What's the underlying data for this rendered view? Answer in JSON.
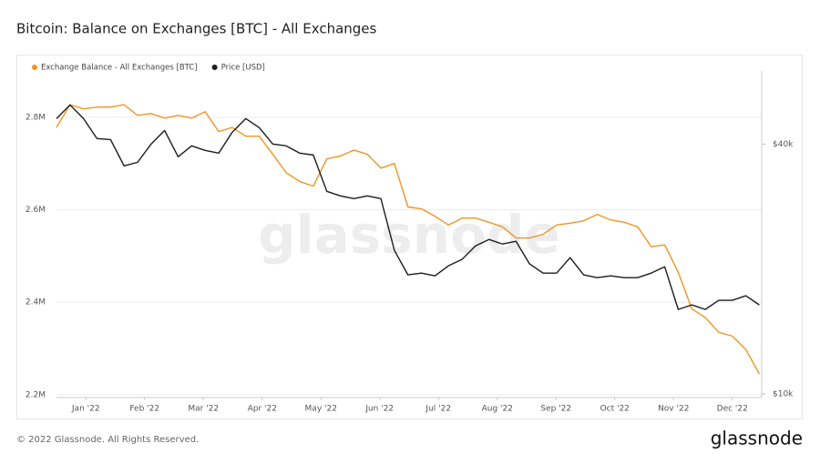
{
  "chart_data": {
    "type": "line",
    "title": "Bitcoin: Balance on Exchanges [BTC] - All Exchanges",
    "watermark": "glassnode",
    "footer": "© 2022 Glassnode. All Rights Reserved.",
    "brand": "glassnode",
    "x": [
      0,
      0.23,
      0.46,
      0.69,
      0.92,
      1.15,
      1.38,
      1.61,
      1.84,
      2.07,
      2.3,
      2.53,
      2.76,
      2.99,
      3.22,
      3.45,
      3.68,
      3.91,
      4.14,
      4.37,
      4.6,
      4.83,
      5.06,
      5.29,
      5.52,
      5.75,
      5.98,
      6.21,
      6.44,
      6.67,
      6.9,
      7.13,
      7.36,
      7.59,
      7.82,
      8.05,
      8.28,
      8.51,
      8.74,
      8.97,
      9.2,
      9.43,
      9.66,
      9.89,
      10.12,
      10.35,
      10.58,
      10.81,
      11.04,
      11.27,
      11.5,
      11.73,
      11.96
    ],
    "xlim": [
      0,
      12
    ],
    "xticks": [
      {
        "value": 0.5,
        "label": "Jan '22"
      },
      {
        "value": 1.5,
        "label": "Feb '22"
      },
      {
        "value": 2.5,
        "label": "Mar '22"
      },
      {
        "value": 3.5,
        "label": "Apr '22"
      },
      {
        "value": 4.5,
        "label": "May '22"
      },
      {
        "value": 5.5,
        "label": "Jun '22"
      },
      {
        "value": 6.5,
        "label": "Jul '22"
      },
      {
        "value": 7.5,
        "label": "Aug '22"
      },
      {
        "value": 8.5,
        "label": "Sep '22"
      },
      {
        "value": 9.5,
        "label": "Oct '22"
      },
      {
        "value": 10.5,
        "label": "Nov '22"
      },
      {
        "value": 11.5,
        "label": "Dec '22"
      }
    ],
    "ylim": [
      2194000,
      2900000
    ],
    "yticks": [
      {
        "value": 2200000,
        "label": "2.2M"
      },
      {
        "value": 2400000,
        "label": "2.4M"
      },
      {
        "value": 2600000,
        "label": "2.6M"
      },
      {
        "value": 2800000,
        "label": "2.8M"
      }
    ],
    "y2lim": [
      9800,
      60000
    ],
    "y2log": true,
    "y2ticks": [
      {
        "value": 10000,
        "label": "$10k"
      },
      {
        "value": 40000,
        "label": "$40k"
      }
    ],
    "grid": true,
    "legend": "top-left",
    "series": [
      {
        "name": "Exchange Balance - All Exchanges [BTC]",
        "color": "#f29424",
        "values": [
          2778000,
          2827000,
          2818000,
          2822000,
          2822000,
          2827000,
          2804000,
          2808000,
          2798000,
          2804000,
          2798000,
          2812000,
          2769000,
          2778000,
          2759000,
          2759000,
          2720000,
          2680000,
          2661000,
          2651000,
          2710000,
          2716000,
          2729000,
          2720000,
          2690000,
          2700000,
          2606000,
          2602000,
          2586000,
          2567000,
          2582000,
          2582000,
          2573000,
          2563000,
          2539000,
          2539000,
          2547000,
          2567000,
          2571000,
          2576000,
          2590000,
          2578000,
          2573000,
          2563000,
          2520000,
          2524000,
          2465000,
          2386000,
          2367000,
          2335000,
          2327000,
          2298000,
          2245000
        ]
      },
      {
        "name": "Price [USD]",
        "color": "#1c1c1c",
        "axis": "y2",
        "values": [
          46070,
          49700,
          46070,
          41230,
          41000,
          35440,
          36150,
          40000,
          43130,
          37270,
          39600,
          38610,
          38030,
          42700,
          46070,
          43800,
          40000,
          39600,
          38030,
          37640,
          30770,
          30000,
          29560,
          30000,
          29560,
          22180,
          19360,
          19550,
          19260,
          20360,
          21090,
          22740,
          23560,
          22970,
          23320,
          20570,
          19550,
          19550,
          21300,
          19360,
          19060,
          19260,
          19060,
          19060,
          19550,
          20250,
          15980,
          16390,
          15980,
          16810,
          16810,
          17240,
          16390
        ]
      }
    ]
  }
}
